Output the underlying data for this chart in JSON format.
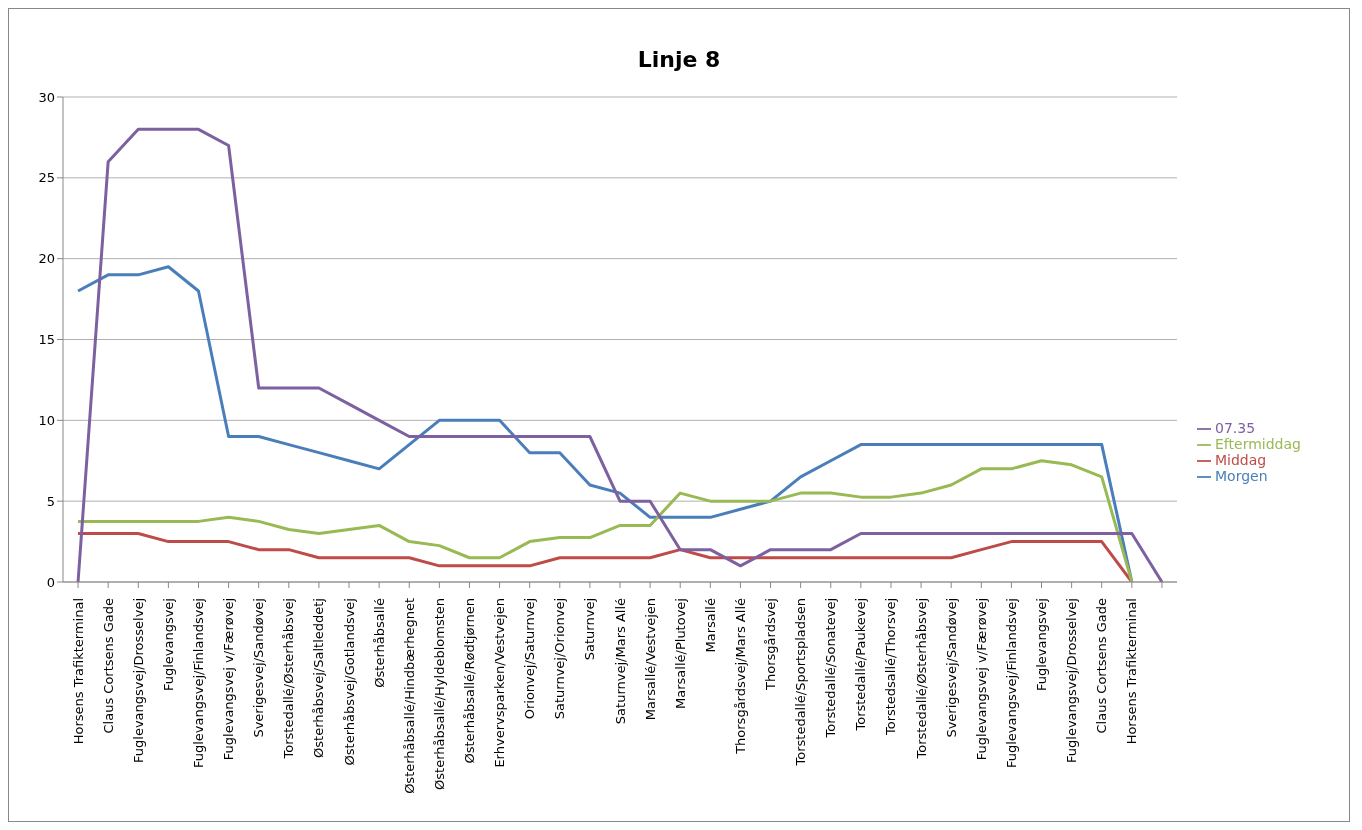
{
  "chart_data": {
    "type": "line",
    "title": "Linje 8",
    "categories": [
      "Horsens Trafikterminal",
      "Claus Cortsens Gade",
      "Fuglevangsvej/Drosselvej",
      "Fuglevangsvej",
      "Fuglevangsvej/Finlandsvej",
      "Fuglevangsvej v/Færøvej",
      "Sverigesvej/Sandøvej",
      "Torstedallé/Østerhåbsvej",
      "Østerhåbsvej/Saltleddetj",
      "Østerhåbsvej/Gotlandsvej",
      "Østerhåbsallé",
      "Østerhåbsallé/Hindbærhegnet",
      "Østerhåbsallé/Hyldeblomsten",
      "Østerhåbsallé/Rødtjørnen",
      "Erhvervsparken/Vestvejen",
      "Orionvej/Saturnvej",
      "Saturnvej/Orionvej",
      "Saturnvej",
      "Saturnvej/Mars Allé",
      "Marsallé/Vestvejen",
      "Marsallé/Plutovej",
      "Marsallé",
      "Thorsgårdsvej/Mars Allé",
      "Thorsgårdsvej",
      "Torstedallé/Sportspladsen",
      "Torstedallé/Sonatevej",
      "Torstedallé/Paukevej",
      "Torstedsallé/Thorsvej",
      "Torstedallé/Østerhåbsvej",
      "Sverigesvej/Sandøvej",
      "Fuglevangsvej v/Færøvej",
      "Fuglevangsvej/Finlandsvej",
      "Fuglevangsvej",
      "Fuglevangsvej/Drosselvej",
      "Claus Cortsens Gade",
      "Horsens Trafikterminal",
      null
    ],
    "series": [
      {
        "name": "Morgen",
        "color": "#4a7ebb",
        "values": [
          18,
          19,
          19,
          19.5,
          18,
          9,
          9,
          8.5,
          8,
          7.5,
          7,
          8.5,
          10,
          10,
          10,
          8,
          8,
          6,
          5.5,
          4,
          4,
          4,
          4.5,
          5,
          6.5,
          7.5,
          8.5,
          8.5,
          8.5,
          8.5,
          8.5,
          8.5,
          8.5,
          8.5,
          8.5,
          0,
          null
        ]
      },
      {
        "name": "Middag",
        "color": "#be4b48",
        "values": [
          3,
          3,
          3,
          2.5,
          2.5,
          2.5,
          2,
          2,
          1.5,
          1.5,
          1.5,
          1.5,
          1,
          1,
          1,
          1,
          1.5,
          1.5,
          1.5,
          1.5,
          2,
          1.5,
          1.5,
          1.5,
          1.5,
          1.5,
          1.5,
          1.5,
          1.5,
          1.5,
          2,
          2.5,
          2.5,
          2.5,
          2.5,
          0,
          null
        ]
      },
      {
        "name": "Eftermiddag",
        "color": "#98b954",
        "values": [
          3.75,
          3.75,
          3.75,
          3.75,
          3.75,
          4,
          3.75,
          3.25,
          3,
          3.25,
          3.5,
          2.5,
          2.25,
          1.5,
          1.5,
          2.5,
          2.75,
          2.75,
          3.5,
          3.5,
          5.5,
          5,
          5,
          5,
          5.5,
          5.5,
          5.25,
          5.25,
          5.5,
          6,
          7,
          7,
          7.5,
          7.25,
          6.5,
          0,
          null
        ]
      },
      {
        "name": "07.35",
        "color": "#7d60a0",
        "values": [
          0,
          26,
          28,
          28,
          28,
          27,
          12,
          12,
          12,
          11,
          10,
          9,
          9,
          9,
          9,
          9,
          9,
          9,
          5,
          5,
          2,
          2,
          1,
          2,
          2,
          2,
          3,
          3,
          3,
          3,
          3,
          3,
          3,
          3,
          3,
          3,
          0
        ]
      }
    ],
    "ylim": [
      0,
      30
    ],
    "yticks": [
      0,
      5,
      10,
      15,
      20,
      25,
      30
    ],
    "grid": "y",
    "legend": "right",
    "marker": "none",
    "line_style": "solid"
  }
}
